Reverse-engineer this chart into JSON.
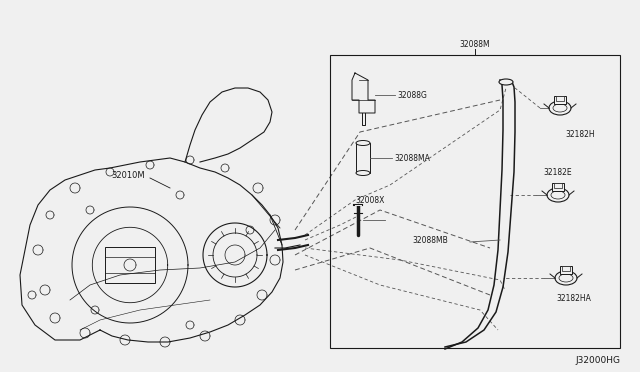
{
  "bg_color": "#f0f0f0",
  "diagram_id": "J32000HG",
  "box_label": "32088M",
  "label_32010M": "32010M",
  "label_32088G": "32088G",
  "label_32088MA": "32088MA",
  "label_32008X": "32008X",
  "label_32088MB": "32088MB",
  "label_32182H": "32182H",
  "label_32182E": "32182E",
  "label_32182HA": "32182HA",
  "lc": "#1a1a1a",
  "lc_gray": "#555555",
  "fs": 5.5,
  "fs_id": 6.5
}
